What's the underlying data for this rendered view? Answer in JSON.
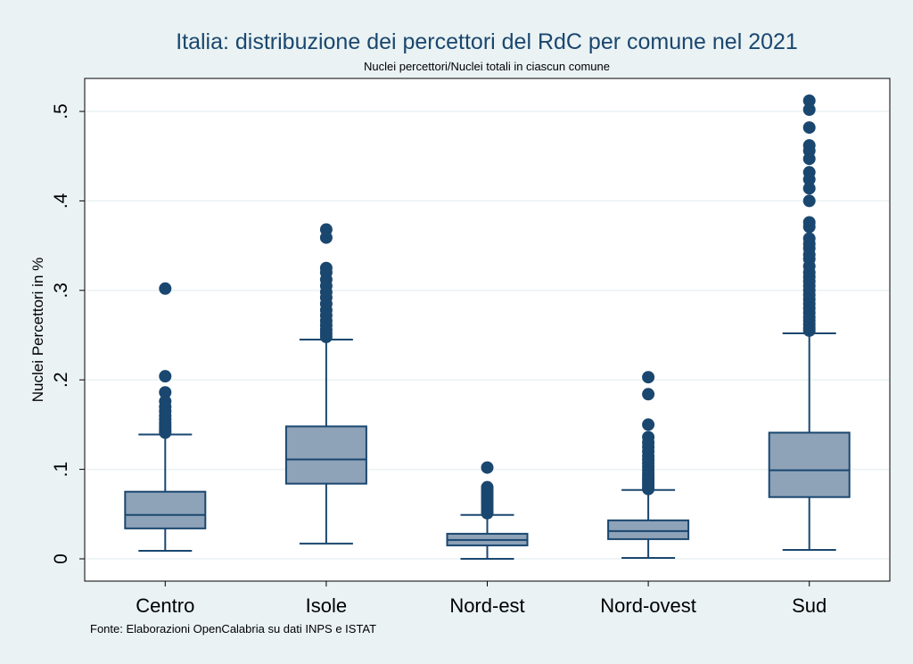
{
  "chart_data": {
    "type": "box",
    "title": "Italia: distribuzione dei percettori del RdC per comune nel 2021",
    "subtitle": "Nuclei percettori/Nuclei totali in ciascun comune",
    "ylabel": "Nuclei Percettori in %",
    "xlabel": "",
    "note": "Fonte: Elaborazioni OpenCalabria su dati INPS e ISTAT",
    "ylim": [
      0,
      0.53
    ],
    "yticks": [
      0,
      0.1,
      0.2,
      0.3,
      0.4,
      0.5
    ],
    "ytick_labels": [
      "0",
      ".1",
      ".2",
      ".3",
      ".4",
      ".5"
    ],
    "grid": true,
    "colors": {
      "background": "#eaf2f3",
      "plot_area": "#ffffff",
      "box_fill": "#8ea2b8",
      "box_stroke": "#1a476f",
      "outlier": "#1a476f",
      "grid": "#eaf2f3",
      "title": "#1a476f"
    },
    "categories": [
      "Centro",
      "Isole",
      "Nord-est",
      "Nord-ovest",
      "Sud"
    ],
    "boxes": [
      {
        "category": "Centro",
        "whisker_low": 0.009,
        "q1": 0.034,
        "median": 0.049,
        "q3": 0.075,
        "whisker_high": 0.139,
        "outliers": [
          0.302,
          0.204,
          0.186,
          0.176,
          0.17,
          0.165,
          0.16,
          0.156,
          0.152,
          0.149,
          0.146,
          0.143,
          0.141
        ]
      },
      {
        "category": "Isole",
        "whisker_low": 0.017,
        "q1": 0.084,
        "median": 0.111,
        "q3": 0.148,
        "whisker_high": 0.245,
        "outliers": [
          0.368,
          0.359,
          0.325,
          0.32,
          0.312,
          0.305,
          0.298,
          0.292,
          0.285,
          0.278,
          0.272,
          0.266,
          0.261,
          0.256,
          0.252,
          0.248
        ]
      },
      {
        "category": "Nord-est",
        "whisker_low": 0.0,
        "q1": 0.015,
        "median": 0.021,
        "q3": 0.028,
        "whisker_high": 0.049,
        "outliers": [
          0.102,
          0.08,
          0.077,
          0.074,
          0.071,
          0.068,
          0.065,
          0.062,
          0.059,
          0.056,
          0.053,
          0.051
        ]
      },
      {
        "category": "Nord-ovest",
        "whisker_low": 0.001,
        "q1": 0.022,
        "median": 0.031,
        "q3": 0.043,
        "whisker_high": 0.077,
        "outliers": [
          0.203,
          0.184,
          0.15,
          0.136,
          0.13,
          0.125,
          0.12,
          0.115,
          0.111,
          0.107,
          0.103,
          0.099,
          0.095,
          0.092,
          0.089,
          0.086,
          0.083,
          0.08,
          0.078
        ]
      },
      {
        "category": "Sud",
        "whisker_low": 0.01,
        "q1": 0.069,
        "median": 0.099,
        "q3": 0.141,
        "whisker_high": 0.252,
        "outliers": [
          0.512,
          0.502,
          0.482,
          0.462,
          0.456,
          0.447,
          0.432,
          0.424,
          0.414,
          0.4,
          0.376,
          0.371,
          0.358,
          0.352,
          0.347,
          0.34,
          0.335,
          0.327,
          0.32,
          0.315,
          0.31,
          0.305,
          0.3,
          0.295,
          0.29,
          0.285,
          0.28,
          0.275,
          0.27,
          0.266,
          0.262,
          0.258,
          0.255
        ]
      }
    ]
  }
}
